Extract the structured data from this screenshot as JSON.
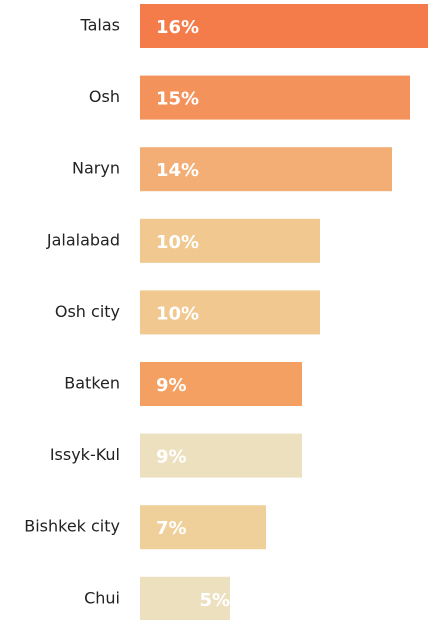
{
  "chart_data": {
    "type": "bar",
    "orientation": "horizontal",
    "categories": [
      "Talas",
      "Osh",
      "Naryn",
      "Jalalabad",
      "Osh city",
      "Batken",
      "Issyk-Kul",
      "Bishkek city",
      "Chui"
    ],
    "values": [
      16,
      15,
      14,
      10,
      10,
      9,
      9,
      7,
      5
    ],
    "value_labels": [
      "16%",
      "15%",
      "14%",
      "10%",
      "10%",
      "9%",
      "9%",
      "7%",
      "5%"
    ],
    "colors": [
      "#f47c4b",
      "#f4925c",
      "#f2ae74",
      "#f0c890",
      "#f0c890",
      "#f4a063",
      "#ede0bf",
      "#efd09a",
      "#ede0bf"
    ]
  }
}
